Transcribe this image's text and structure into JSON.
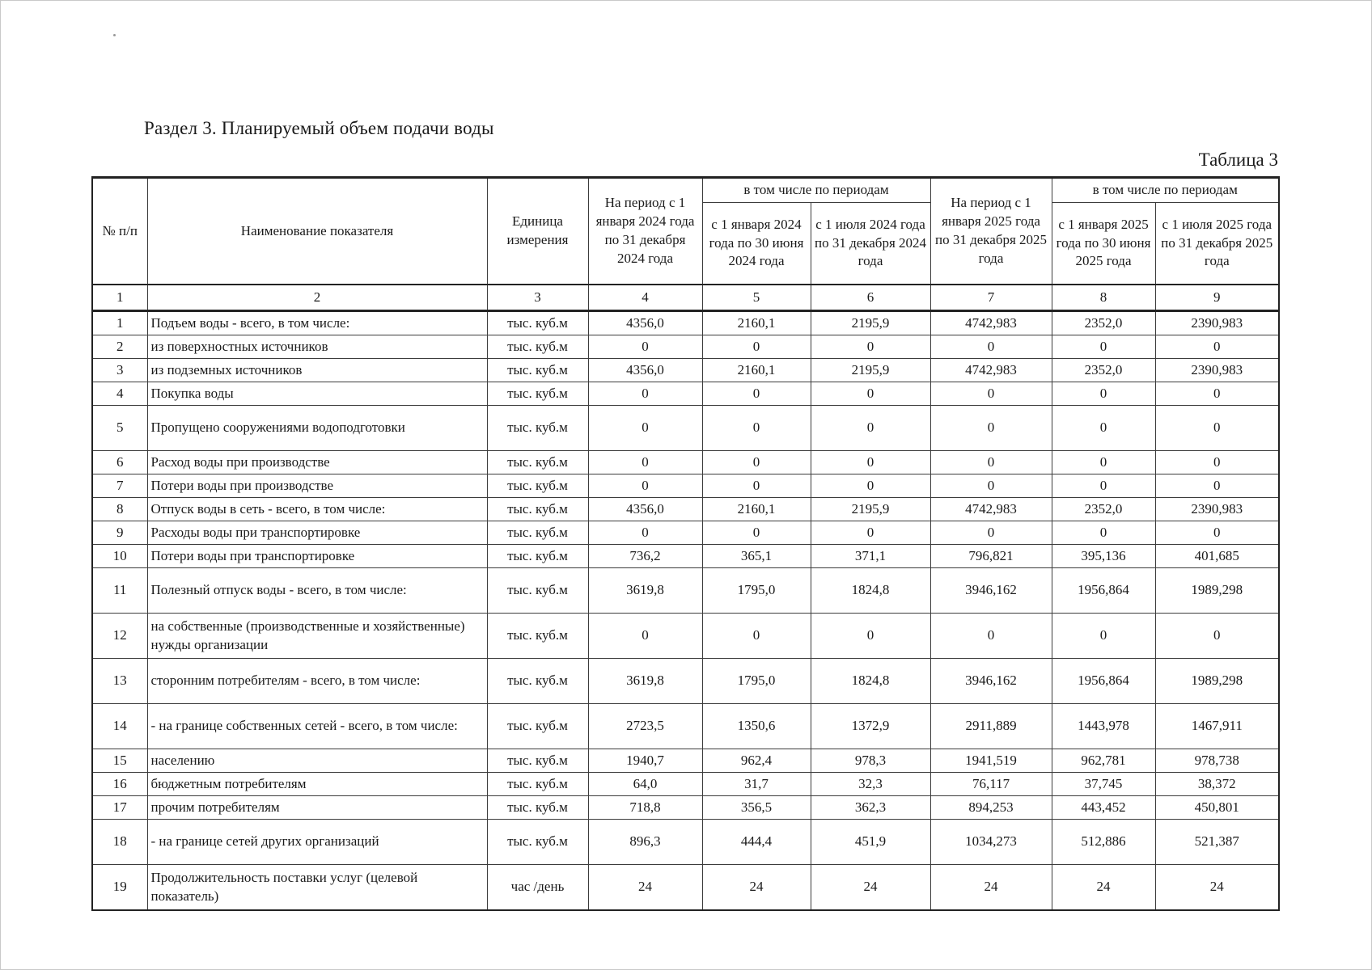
{
  "page": {
    "title": "Раздел 3. Планируемый объем подачи воды",
    "table_label": "Таблица 3"
  },
  "table": {
    "header": {
      "col_no": "№ п/п",
      "col_name": "Наименование показателя",
      "col_unit": "Единица измерения",
      "period_2024": "На период с 1 января 2024 года по 31 декабря 2024 года",
      "including_2024": "в том числе по периодам",
      "half1_2024": "с 1 января 2024 года по 30 июня 2024 года",
      "half2_2024": "с 1 июля 2024 года по 31 декабря 2024 года",
      "period_2025": "На период с 1 января 2025 года по 31 декабря 2025 года",
      "including_2025": "в том числе по периодам",
      "half1_2025": "с 1 января 2025 года по 30 июня 2025 года",
      "half2_2025": "с 1 июля 2025 года по 31 декабря 2025 года"
    },
    "column_numbers": [
      "1",
      "2",
      "3",
      "4",
      "5",
      "6",
      "7",
      "8",
      "9"
    ],
    "rows": [
      {
        "no": "1",
        "name": "Подъем воды - всего, в том числе:",
        "indent": 0,
        "tall": false,
        "unit": "тыс. куб.м",
        "values": [
          "4356,0",
          "2160,1",
          "2195,9",
          "4742,983",
          "2352,0",
          "2390,983"
        ]
      },
      {
        "no": "2",
        "name": "из поверхностных источников",
        "indent": 2,
        "tall": false,
        "unit": "тыс. куб.м",
        "values": [
          "0",
          "0",
          "0",
          "0",
          "0",
          "0"
        ]
      },
      {
        "no": "3",
        "name": "из подземных источников",
        "indent": 2,
        "tall": false,
        "unit": "тыс. куб.м",
        "values": [
          "4356,0",
          "2160,1",
          "2195,9",
          "4742,983",
          "2352,0",
          "2390,983"
        ]
      },
      {
        "no": "4",
        "name": "Покупка воды",
        "indent": 0,
        "tall": false,
        "unit": "тыс. куб.м",
        "values": [
          "0",
          "0",
          "0",
          "0",
          "0",
          "0"
        ]
      },
      {
        "no": "5",
        "name": "Пропущено сооружениями водоподготовки",
        "indent": 0,
        "tall": true,
        "unit": "тыс. куб.м",
        "values": [
          "0",
          "0",
          "0",
          "0",
          "0",
          "0"
        ]
      },
      {
        "no": "6",
        "name": "Расход воды при производстве",
        "indent": 0,
        "tall": false,
        "unit": "тыс. куб.м",
        "values": [
          "0",
          "0",
          "0",
          "0",
          "0",
          "0"
        ]
      },
      {
        "no": "7",
        "name": "Потери воды при производстве",
        "indent": 0,
        "tall": false,
        "unit": "тыс. куб.м",
        "values": [
          "0",
          "0",
          "0",
          "0",
          "0",
          "0"
        ]
      },
      {
        "no": "8",
        "name": "Отпуск воды в сеть - всего, в том числе:",
        "indent": 0,
        "tall": false,
        "unit": "тыс. куб.м",
        "values": [
          "4356,0",
          "2160,1",
          "2195,9",
          "4742,983",
          "2352,0",
          "2390,983"
        ]
      },
      {
        "no": "9",
        "name": "Расходы воды при транспортировке",
        "indent": 0,
        "tall": false,
        "unit": "тыс. куб.м",
        "values": [
          "0",
          "0",
          "0",
          "0",
          "0",
          "0"
        ]
      },
      {
        "no": "10",
        "name": "Потери воды при транспортировке",
        "indent": 0,
        "tall": false,
        "unit": "тыс. куб.м",
        "values": [
          "736,2",
          "365,1",
          "371,1",
          "796,821",
          "395,136",
          "401,685"
        ]
      },
      {
        "no": "11",
        "name": "Полезный отпуск воды - всего, в том числе:",
        "indent": 0,
        "tall": true,
        "unit": "тыс. куб.м",
        "values": [
          "3619,8",
          "1795,0",
          "1824,8",
          "3946,162",
          "1956,864",
          "1989,298"
        ]
      },
      {
        "no": "12",
        "name": "на собственные (производственные и хозяйственные) нужды организации",
        "indent": 1,
        "tall": true,
        "unit": "тыс. куб.м",
        "values": [
          "0",
          "0",
          "0",
          "0",
          "0",
          "0"
        ]
      },
      {
        "no": "13",
        "name": "сторонним потребителям - всего, в том числе:",
        "indent": 1,
        "tall": true,
        "unit": "тыс. куб.м",
        "values": [
          "3619,8",
          "1795,0",
          "1824,8",
          "3946,162",
          "1956,864",
          "1989,298"
        ]
      },
      {
        "no": "14",
        "name": "- на границе собственных сетей - всего, в том числе:",
        "indent": 3,
        "tall": true,
        "unit": "тыс. куб.м",
        "values": [
          "2723,5",
          "1350,6",
          "1372,9",
          "2911,889",
          "1443,978",
          "1467,911"
        ]
      },
      {
        "no": "15",
        "name": "населению",
        "indent": 4,
        "tall": false,
        "unit": "тыс. куб.м",
        "values": [
          "1940,7",
          "962,4",
          "978,3",
          "1941,519",
          "962,781",
          "978,738"
        ]
      },
      {
        "no": "16",
        "name": "бюджетным потребителям",
        "indent": 4,
        "tall": false,
        "unit": "тыс. куб.м",
        "values": [
          "64,0",
          "31,7",
          "32,3",
          "76,117",
          "37,745",
          "38,372"
        ]
      },
      {
        "no": "17",
        "name": "прочим потребителям",
        "indent": 4,
        "tall": false,
        "unit": "тыс. куб.м",
        "values": [
          "718,8",
          "356,5",
          "362,3",
          "894,253",
          "443,452",
          "450,801"
        ]
      },
      {
        "no": "18",
        "name": "- на границе сетей других организаций",
        "indent": 3,
        "tall": true,
        "unit": "тыс. куб.м",
        "values": [
          "896,3",
          "444,4",
          "451,9",
          "1034,273",
          "512,886",
          "521,387"
        ]
      },
      {
        "no": "19",
        "name": "Продолжительность поставки услуг (целевой показатель)",
        "indent": 0,
        "tall": true,
        "unit": "час /день",
        "values": [
          "24",
          "24",
          "24",
          "24",
          "24",
          "24"
        ]
      }
    ]
  }
}
